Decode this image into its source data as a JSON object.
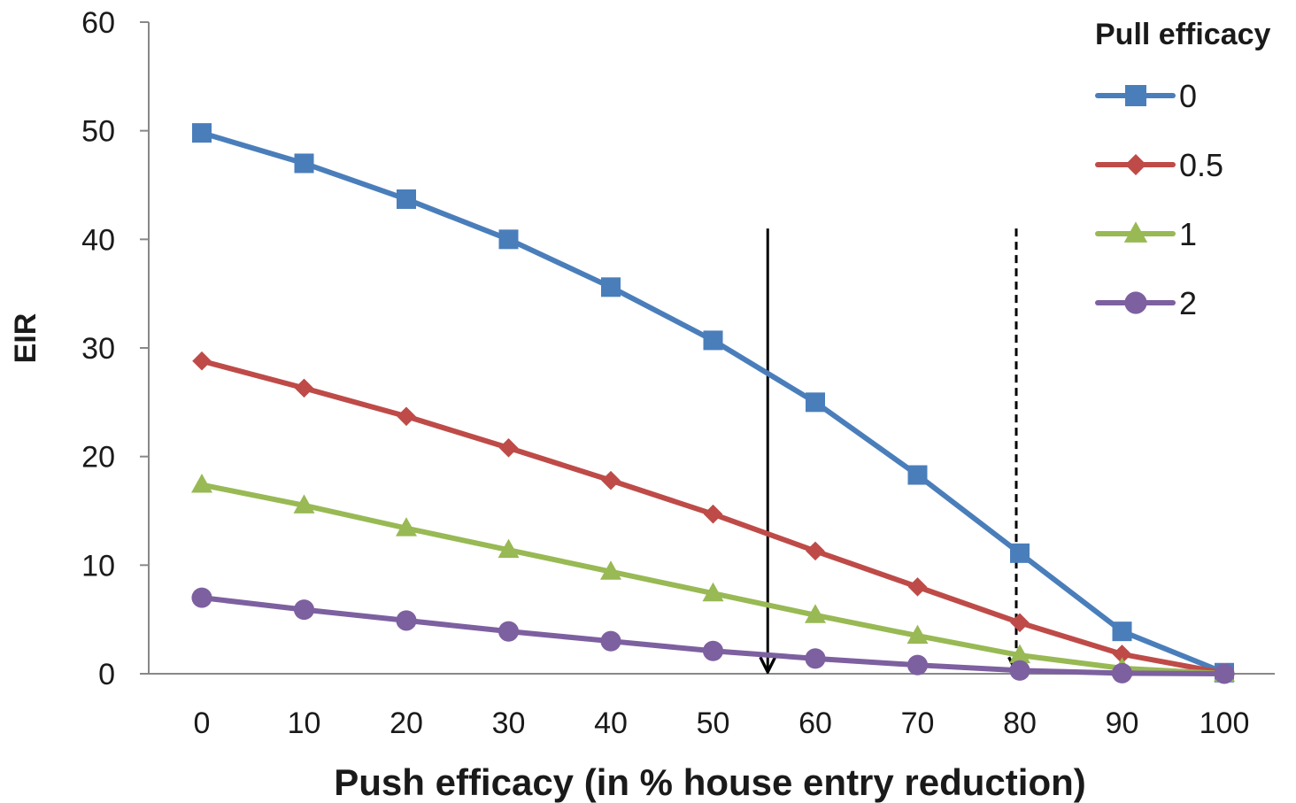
{
  "chart_data": {
    "type": "line",
    "xlabel": "Push efficacy (in % house entry reduction)",
    "ylabel": "EIR",
    "x": [
      0,
      10,
      20,
      30,
      40,
      50,
      60,
      70,
      80,
      90,
      100
    ],
    "ylim": [
      0,
      60
    ],
    "yticks": [
      0,
      10,
      20,
      30,
      40,
      50,
      60
    ],
    "grid": false,
    "legend": {
      "title": "Pull efficacy",
      "position": "top-right"
    },
    "series": [
      {
        "name": "0",
        "marker": "square",
        "color": "#4a7ebb",
        "values": [
          49.8,
          47.0,
          43.7,
          40.0,
          35.6,
          30.7,
          25.0,
          18.3,
          11.1,
          3.9,
          0.1
        ]
      },
      {
        "name": "0.5",
        "marker": "diamond",
        "color": "#be4b48",
        "values": [
          28.8,
          26.3,
          23.7,
          20.8,
          17.8,
          14.7,
          11.3,
          8.0,
          4.7,
          1.8,
          0.05
        ]
      },
      {
        "name": "1",
        "marker": "triangle",
        "color": "#98b954",
        "values": [
          17.4,
          15.5,
          13.4,
          11.4,
          9.4,
          7.4,
          5.4,
          3.5,
          1.7,
          0.5,
          0.0
        ]
      },
      {
        "name": "2",
        "marker": "circle",
        "color": "#7d60a0",
        "values": [
          7.0,
          5.9,
          4.9,
          3.9,
          3.0,
          2.1,
          1.4,
          0.8,
          0.3,
          0.05,
          0.0
        ]
      }
    ],
    "annotations": [
      {
        "type": "arrow",
        "style": "solid",
        "x": 55,
        "y_from": 41.0,
        "y_to": 0,
        "color": "#000000"
      },
      {
        "type": "arrow",
        "style": "dashed",
        "x": 80,
        "y_from": 41.0,
        "y_to": 0,
        "color": "#000000"
      }
    ]
  }
}
